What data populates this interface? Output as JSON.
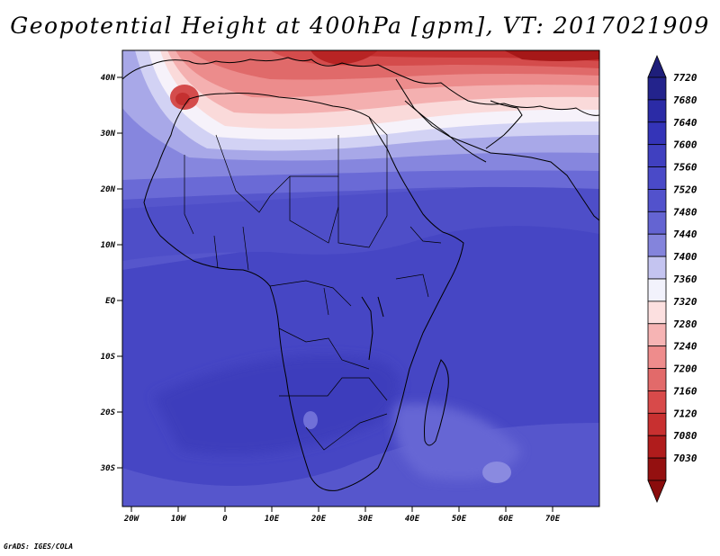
{
  "title": "Geopotential Height at 400hPa [gpm], VT: 2017021909",
  "footer": "GrADS: IGES/COLA",
  "map": {
    "lat_labels": [
      "40N",
      "30N",
      "20N",
      "10N",
      "EQ",
      "10S",
      "20S",
      "30S"
    ],
    "lon_labels": [
      "20W",
      "10W",
      "0",
      "10E",
      "20E",
      "30E",
      "40E",
      "50E",
      "60E",
      "70E"
    ]
  },
  "colorbar": {
    "labels": [
      "7720",
      "7680",
      "7640",
      "7600",
      "7560",
      "7520",
      "7480",
      "7440",
      "7400",
      "7360",
      "7320",
      "7280",
      "7240",
      "7200",
      "7160",
      "7120",
      "7080",
      "7030"
    ],
    "colors": [
      "#23238c",
      "#2b2ba6",
      "#3434b8",
      "#4040c0",
      "#4a4ac8",
      "#5252cc",
      "#6464d2",
      "#8484dc",
      "#c4c4f0",
      "#f2f2fc",
      "#fce0e0",
      "#f6b4b4",
      "#ee8c8c",
      "#e26a6a",
      "#d84a4a",
      "#c83030",
      "#b01c1c",
      "#941010"
    ]
  },
  "legend_colors": {
    "high_arrow": "#1e1e7a",
    "low_arrow": "#8a0c0c",
    "land_outline": "#000000"
  }
}
